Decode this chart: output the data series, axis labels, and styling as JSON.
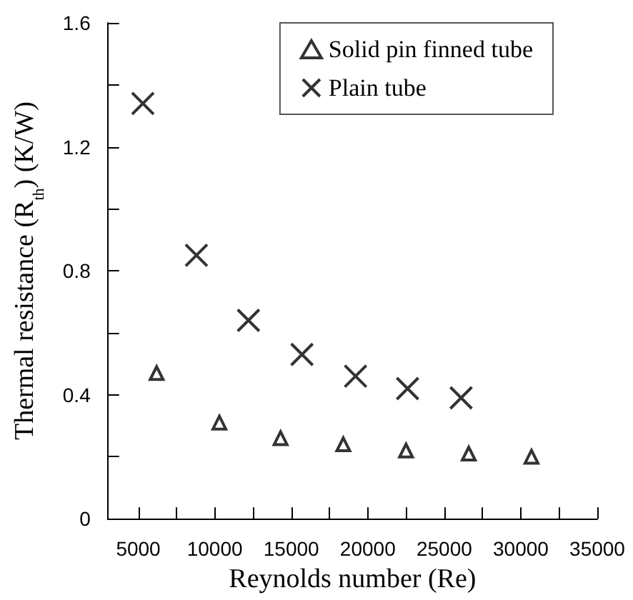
{
  "chart_data": {
    "type": "scatter",
    "xlabel": "Reynolds number (Re)",
    "ylabel": "Thermal resistance (R$_{th}$) (K/W)",
    "xlim": [
      3000,
      35000
    ],
    "xticks": [
      5000,
      {
        "value": 7500,
        "label": null
      },
      10000,
      {
        "value": 12500,
        "label": null
      },
      15000,
      {
        "value": 17500,
        "label": null
      },
      20000,
      {
        "value": 22500,
        "label": null
      },
      25000,
      {
        "value": 27500,
        "label": null
      },
      30000,
      {
        "value": 32500,
        "label": null
      },
      35000
    ],
    "ylim": [
      0,
      1.6
    ],
    "yticks": [
      0,
      {
        "value": 0.2,
        "label": null
      },
      0.4,
      {
        "value": 0.6,
        "label": null
      },
      0.8,
      {
        "value": 1.0,
        "label": null
      },
      1.2,
      {
        "value": 1.4,
        "label": null
      },
      1.6
    ],
    "grid": false,
    "legend": "top right",
    "series": [
      {
        "name": "Solid pin finned tube",
        "color": "#000000",
        "marker": "triangle",
        "x": [
          6200,
          10300,
          14300,
          18400,
          22500,
          26600,
          30700
        ],
        "values": [
          0.47,
          0.31,
          0.26,
          0.24,
          0.22,
          0.21,
          0.2
        ]
      },
      {
        "name": "Plain tube",
        "color": "#000000",
        "marker": "cross",
        "x": [
          5300,
          8800,
          12200,
          15700,
          19200,
          22600,
          26100
        ],
        "values": [
          1.34,
          0.85,
          0.64,
          0.53,
          0.46,
          0.42,
          0.39
        ]
      }
    ]
  }
}
